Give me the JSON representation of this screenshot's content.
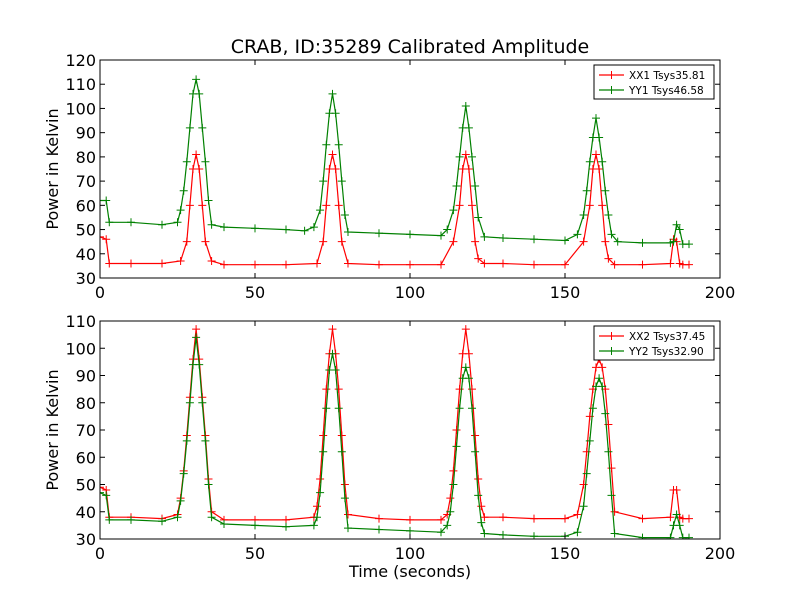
{
  "title": "CRAB, ID:35289 Calibrated Amplitude",
  "colors": {
    "red": "#ff0000",
    "green": "#008000"
  },
  "chart_data": [
    {
      "type": "line",
      "xlabel": "",
      "ylabel": "Power in Kelvin",
      "xlim": [
        0,
        200
      ],
      "ylim": [
        30,
        120
      ],
      "xticks": [
        0,
        50,
        100,
        150,
        200
      ],
      "yticks": [
        30,
        40,
        50,
        60,
        70,
        80,
        90,
        100,
        110,
        120
      ],
      "legend_position": "top-right",
      "grid": false,
      "series": [
        {
          "name": "XX1 Tsys35.81",
          "color": "#ff0000",
          "marker": "+",
          "x": [
            0,
            2,
            3,
            10,
            20,
            26,
            28,
            29,
            30,
            31,
            32,
            33,
            34,
            36,
            40,
            50,
            60,
            70,
            72,
            73,
            74,
            75,
            76,
            77,
            78,
            80,
            90,
            100,
            110,
            114,
            116,
            117,
            118,
            119,
            120,
            121,
            122,
            124,
            130,
            140,
            150,
            156,
            158,
            159,
            160,
            161,
            162,
            163,
            164,
            166,
            175,
            184,
            185,
            186,
            187,
            188,
            190
          ],
          "y": [
            47,
            46,
            36,
            36,
            36,
            37,
            45,
            60,
            75,
            81,
            75,
            60,
            45,
            37,
            35.5,
            35.5,
            35.5,
            36,
            45,
            60,
            75,
            81,
            75,
            60,
            45,
            36,
            35.5,
            35.5,
            35.5,
            45,
            60,
            75,
            81,
            75,
            60,
            45,
            38,
            36,
            36,
            35.5,
            35.5,
            45,
            60,
            75,
            81,
            75,
            60,
            45,
            38,
            35.5,
            35.5,
            36,
            46,
            45,
            36,
            35.5,
            35.5
          ]
        },
        {
          "name": "YY1 Tsys46.58",
          "color": "#008000",
          "marker": "+",
          "x": [
            0,
            2,
            3,
            10,
            20,
            25,
            26,
            27,
            28,
            29,
            30,
            31,
            32,
            33,
            34,
            35,
            36,
            40,
            50,
            60,
            66,
            69,
            71,
            72,
            73,
            74,
            75,
            76,
            77,
            78,
            79,
            80,
            90,
            100,
            110,
            112,
            114,
            115,
            116,
            117,
            118,
            119,
            120,
            121,
            122,
            124,
            130,
            140,
            150,
            154,
            156,
            157,
            158,
            159,
            160,
            161,
            162,
            163,
            164,
            165,
            167,
            175,
            184,
            185,
            186,
            187,
            188,
            190
          ],
          "y": [
            62,
            62,
            53,
            53,
            52,
            53,
            58,
            66,
            78,
            92,
            106,
            112,
            106,
            92,
            78,
            62,
            52,
            51,
            50.5,
            50,
            49.5,
            51,
            58,
            70,
            85,
            98,
            106,
            98,
            85,
            70,
            56,
            49,
            48.5,
            48,
            47.5,
            50,
            58,
            68,
            80,
            92,
            101,
            92,
            80,
            68,
            55,
            47,
            46.5,
            46,
            45.5,
            48,
            56,
            66,
            78,
            88,
            96,
            88,
            78,
            66,
            56,
            48,
            45,
            44.5,
            44.5,
            45,
            52,
            50,
            44,
            44
          ]
        }
      ]
    },
    {
      "type": "line",
      "xlabel": "Time (seconds)",
      "ylabel": "Power in Kelvin",
      "xlim": [
        0,
        200
      ],
      "ylim": [
        30,
        110
      ],
      "xticks": [
        0,
        50,
        100,
        150,
        200
      ],
      "yticks": [
        30,
        40,
        50,
        60,
        70,
        80,
        90,
        100,
        110
      ],
      "legend_position": "top-right",
      "grid": false,
      "series": [
        {
          "name": "XX2 Tsys37.45",
          "color": "#ff0000",
          "marker": "+",
          "x": [
            0,
            2,
            3,
            10,
            20,
            25,
            26,
            27,
            28,
            29,
            30,
            31,
            32,
            33,
            34,
            35,
            36,
            40,
            50,
            60,
            69,
            70,
            71,
            72,
            73,
            74,
            75,
            76,
            77,
            78,
            79,
            80,
            90,
            100,
            110,
            112,
            113,
            114,
            115,
            116,
            117,
            118,
            119,
            120,
            121,
            122,
            123,
            124,
            130,
            140,
            150,
            154,
            156,
            157,
            158,
            159,
            160,
            161,
            162,
            163,
            164,
            165,
            166,
            175,
            184,
            185,
            186,
            187,
            188,
            190
          ],
          "y": [
            49,
            48,
            38,
            38,
            37.5,
            39,
            45,
            55,
            68,
            82,
            96,
            107,
            96,
            82,
            68,
            52,
            40,
            37,
            37,
            37,
            38,
            42,
            52,
            68,
            85,
            98,
            107,
            98,
            85,
            68,
            50,
            39,
            37.5,
            37,
            37,
            39,
            45,
            55,
            70,
            85,
            98,
            107,
            98,
            85,
            68,
            52,
            42,
            38,
            38,
            37.5,
            37.5,
            39,
            50,
            62,
            75,
            85,
            93,
            96,
            93,
            85,
            72,
            56,
            40,
            37.5,
            38,
            48,
            48,
            38,
            37.5,
            37.5
          ]
        },
        {
          "name": "YY2 Tsys32.90",
          "color": "#008000",
          "marker": "+",
          "x": [
            0,
            2,
            3,
            10,
            20,
            25,
            26,
            27,
            28,
            29,
            30,
            31,
            32,
            33,
            34,
            35,
            36,
            40,
            50,
            60,
            69,
            70,
            71,
            72,
            73,
            74,
            75,
            76,
            77,
            78,
            79,
            80,
            90,
            100,
            110,
            112,
            113,
            114,
            115,
            116,
            117,
            118,
            119,
            120,
            121,
            122,
            123,
            124,
            130,
            140,
            150,
            154,
            156,
            157,
            158,
            159,
            160,
            161,
            162,
            163,
            164,
            165,
            166,
            175,
            184,
            185,
            186,
            187,
            188,
            190
          ],
          "y": [
            47,
            46,
            37,
            37,
            36.5,
            38,
            44,
            54,
            66,
            80,
            94,
            104,
            94,
            80,
            66,
            50,
            38,
            35.5,
            35,
            34.5,
            35,
            38,
            47,
            62,
            78,
            92,
            98,
            92,
            78,
            62,
            45,
            34,
            33.5,
            33,
            32.5,
            35,
            40,
            50,
            64,
            78,
            89,
            93,
            89,
            78,
            62,
            46,
            36,
            32,
            31.5,
            31,
            31,
            32.5,
            42,
            54,
            66,
            78,
            86,
            89,
            86,
            76,
            62,
            46,
            32,
            30.5,
            30.5,
            35,
            39,
            35,
            30.5,
            30.5
          ]
        }
      ]
    }
  ]
}
